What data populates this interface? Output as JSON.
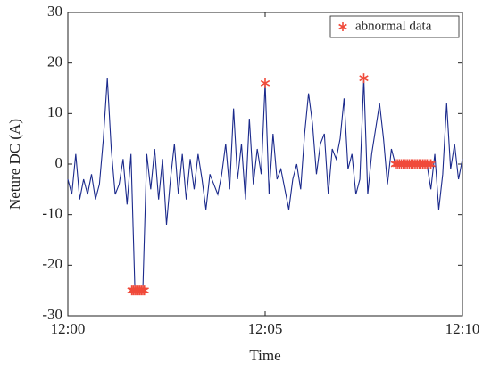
{
  "chart_data": {
    "type": "line",
    "xlabel": "Time",
    "ylabel": "Neture DC (A)",
    "xlim": [
      0,
      10
    ],
    "xticks": [
      {
        "value": 0,
        "label": "12:00"
      },
      {
        "value": 5,
        "label": "12:05"
      },
      {
        "value": 10,
        "label": "12:10"
      }
    ],
    "ylim": [
      -30,
      30
    ],
    "yticks": [
      -30,
      -20,
      -10,
      0,
      10,
      20,
      30
    ],
    "legend": "upper right",
    "series": [
      {
        "type": "line",
        "color": "#1b2a8c",
        "x": [
          0,
          0.1,
          0.2,
          0.3,
          0.4,
          0.5,
          0.6,
          0.7,
          0.8,
          0.9,
          1,
          1.1,
          1.2,
          1.3,
          1.4,
          1.5,
          1.6,
          1.7,
          1.8,
          1.9,
          2,
          2.1,
          2.2,
          2.3,
          2.4,
          2.5,
          2.6,
          2.7,
          2.8,
          2.9,
          3,
          3.1,
          3.2,
          3.3,
          3.4,
          3.5,
          3.6,
          3.7,
          3.8,
          3.9,
          4,
          4.1,
          4.2,
          4.3,
          4.4,
          4.5,
          4.6,
          4.7,
          4.8,
          4.9,
          5,
          5.1,
          5.2,
          5.3,
          5.4,
          5.5,
          5.6,
          5.7,
          5.8,
          5.9,
          6,
          6.1,
          6.2,
          6.3,
          6.4,
          6.5,
          6.6,
          6.7,
          6.8,
          6.9,
          7,
          7.1,
          7.2,
          7.3,
          7.4,
          7.5,
          7.6,
          7.7,
          7.8,
          7.9,
          8,
          8.1,
          8.2,
          8.3,
          8.4,
          8.5,
          8.6,
          8.7,
          8.8,
          8.9,
          9,
          9.1,
          9.2,
          9.3,
          9.4,
          9.5,
          9.6,
          9.7,
          9.8,
          9.9,
          10
        ],
        "values": [
          -3,
          -6,
          2,
          -7,
          -3,
          -6,
          -2,
          -7,
          -4,
          5,
          17,
          3,
          -6,
          -4,
          1,
          -8,
          2,
          -25,
          -25,
          -25,
          2,
          -5,
          3,
          -7,
          1,
          -12,
          -3,
          4,
          -6,
          2,
          -7,
          1,
          -5,
          2,
          -3,
          -9,
          -2,
          -4,
          -6,
          -2,
          4,
          -5,
          11,
          -3,
          4,
          -7,
          9,
          -4,
          3,
          -2,
          16,
          -6,
          6,
          -3,
          -1,
          -5,
          -9,
          -3,
          0,
          -5,
          6,
          14,
          8,
          -2,
          4,
          6,
          -6,
          3,
          1,
          5,
          13,
          -1,
          2,
          -6,
          -3,
          17,
          -6,
          2,
          7,
          12,
          5,
          -4,
          3,
          0,
          0,
          0,
          0,
          0,
          0,
          0,
          0,
          0,
          -5,
          2,
          -9,
          -2,
          12,
          -1,
          4,
          -3,
          1
        ]
      },
      {
        "type": "scatter",
        "name": "abnormal data",
        "color": "#f04a3a",
        "x": [
          1.62,
          1.66,
          1.7,
          1.74,
          1.78,
          1.82,
          1.86,
          1.9,
          1.94,
          5,
          7.5,
          8.3,
          8.35,
          8.4,
          8.45,
          8.5,
          8.55,
          8.6,
          8.65,
          8.7,
          8.75,
          8.8,
          8.85,
          8.9,
          8.95,
          9,
          9.05,
          9.1,
          9.15,
          9.2
        ],
        "values": [
          -25,
          -25,
          -25,
          -25,
          -25,
          -25,
          -25,
          -25,
          -25,
          16,
          17,
          0,
          0,
          0,
          0,
          0,
          0,
          0,
          0,
          0,
          0,
          0,
          0,
          0,
          0,
          0,
          0,
          0,
          0,
          0
        ]
      }
    ]
  }
}
